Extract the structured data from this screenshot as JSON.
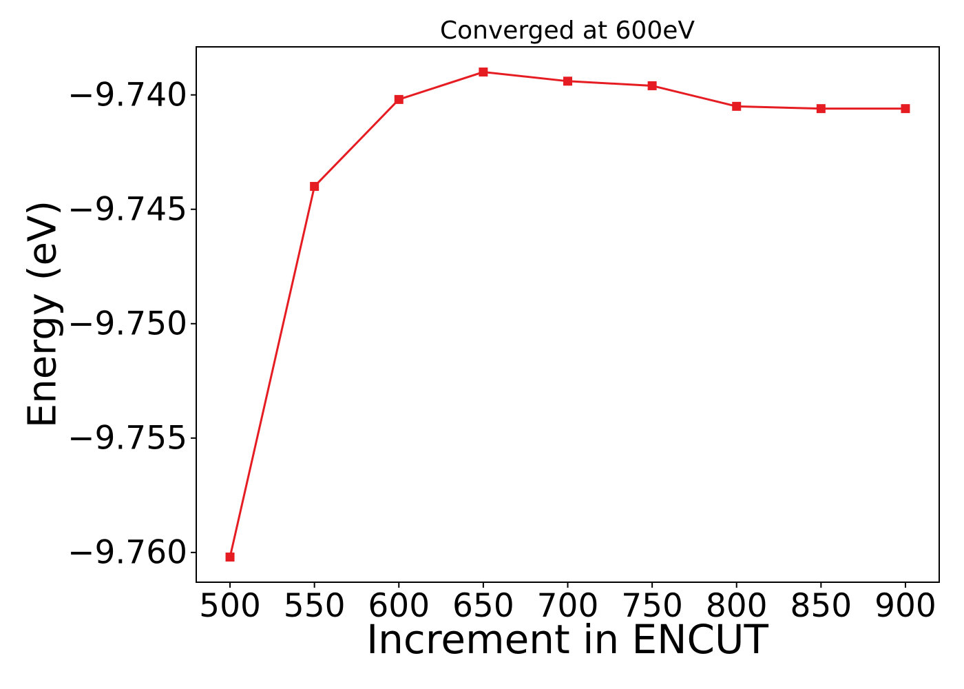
{
  "chart_data": {
    "type": "line",
    "title": "Converged at 600eV",
    "xlabel": "Increment in ENCUT",
    "ylabel": "Energy (eV)",
    "x": [
      500,
      550,
      600,
      650,
      700,
      750,
      800,
      850,
      900
    ],
    "series": [
      {
        "name": "Energy",
        "values": [
          -9.7602,
          -9.744,
          -9.7402,
          -9.739,
          -9.7394,
          -9.7396,
          -9.7405,
          -9.7406,
          -9.7406
        ]
      }
    ],
    "marker": "square",
    "line_color": "#e51d23",
    "text_color": "#000000",
    "grid": false,
    "legend": "none",
    "xlim": [
      480,
      920
    ],
    "ylim": [
      -9.7613,
      -9.7379
    ],
    "xticks": [
      {
        "value": 500,
        "label": "500"
      },
      {
        "value": 550,
        "label": "550"
      },
      {
        "value": 600,
        "label": "600"
      },
      {
        "value": 650,
        "label": "650"
      },
      {
        "value": 700,
        "label": "700"
      },
      {
        "value": 750,
        "label": "750"
      },
      {
        "value": 800,
        "label": "800"
      },
      {
        "value": 850,
        "label": "850"
      },
      {
        "value": 900,
        "label": "900"
      }
    ],
    "yticks": [
      {
        "value": -9.74,
        "label": "−9.740"
      },
      {
        "value": -9.745,
        "label": "−9.745"
      },
      {
        "value": -9.75,
        "label": "−9.750"
      },
      {
        "value": -9.755,
        "label": "−9.755"
      },
      {
        "value": -9.76,
        "label": "−9.760"
      }
    ]
  }
}
